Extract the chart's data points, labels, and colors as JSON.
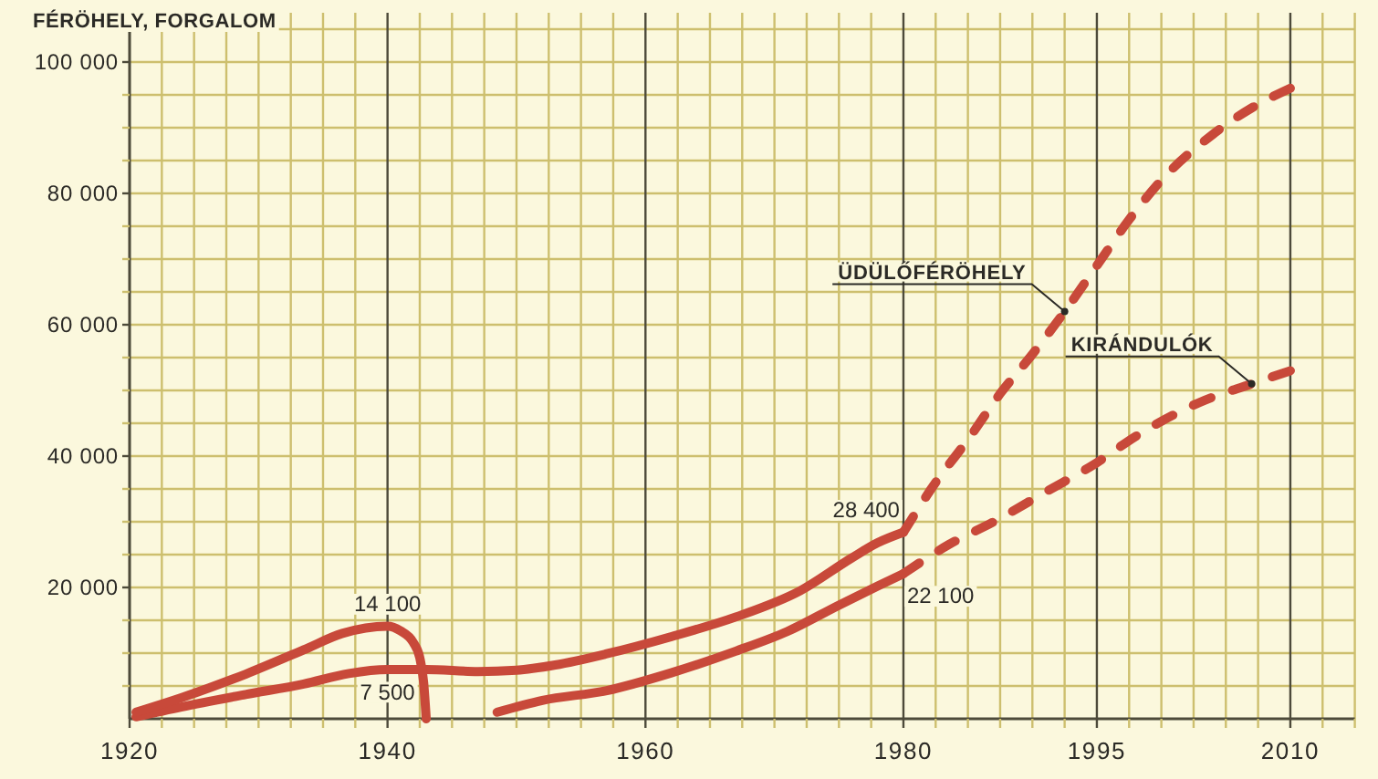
{
  "chart_data": {
    "type": "line",
    "ylabel": "FÉRÖHELY, FORGALOM",
    "xlim": [
      1920,
      2015
    ],
    "ylim": [
      0,
      107500
    ],
    "xticks": [
      1920,
      {
        "value": 1922.5,
        "label": null
      },
      {
        "value": 1925,
        "label": null
      },
      {
        "value": 1927.5,
        "label": null
      },
      {
        "value": 1930,
        "label": null
      },
      {
        "value": 1932.5,
        "label": null
      },
      {
        "value": 1935,
        "label": null
      },
      {
        "value": 1937.5,
        "label": null
      },
      1940,
      {
        "value": 1942.5,
        "label": null
      },
      {
        "value": 1945,
        "label": null
      },
      {
        "value": 1947.5,
        "label": null
      },
      {
        "value": 1950,
        "label": null
      },
      {
        "value": 1952.5,
        "label": null
      },
      {
        "value": 1955,
        "label": null
      },
      {
        "value": 1957.5,
        "label": null
      },
      1960,
      {
        "value": 1962.5,
        "label": null
      },
      {
        "value": 1965,
        "label": null
      },
      {
        "value": 1967.5,
        "label": null
      },
      {
        "value": 1970,
        "label": null
      },
      {
        "value": 1972.5,
        "label": null
      },
      {
        "value": 1975,
        "label": null
      },
      {
        "value": 1977.5,
        "label": null
      },
      1980,
      {
        "value": 1982.5,
        "label": null
      },
      {
        "value": 1985,
        "label": null
      },
      {
        "value": 1987.5,
        "label": null
      },
      {
        "value": 1990,
        "label": null
      },
      {
        "value": 1992.5,
        "label": null
      },
      1995,
      {
        "value": 1997.5,
        "label": null
      },
      {
        "value": 2000,
        "label": null
      },
      {
        "value": 2002.5,
        "label": null
      },
      {
        "value": 2005,
        "label": null
      },
      {
        "value": 2007.5,
        "label": null
      },
      2010,
      {
        "value": 2012.5,
        "label": null
      },
      {
        "value": 2015,
        "label": null
      }
    ],
    "yticks": [
      {
        "value": 5000,
        "label": null
      },
      {
        "value": 10000,
        "label": null
      },
      {
        "value": 15000,
        "label": null
      },
      {
        "value": 20000,
        "label": "20 000"
      },
      {
        "value": 25000,
        "label": null
      },
      {
        "value": 30000,
        "label": null
      },
      {
        "value": 35000,
        "label": null
      },
      {
        "value": 40000,
        "label": "40 000"
      },
      {
        "value": 45000,
        "label": null
      },
      {
        "value": 50000,
        "label": null
      },
      {
        "value": 55000,
        "label": null
      },
      {
        "value": 60000,
        "label": "60 000"
      },
      {
        "value": 65000,
        "label": null
      },
      {
        "value": 70000,
        "label": null
      },
      {
        "value": 75000,
        "label": null
      },
      {
        "value": 80000,
        "label": "80 000"
      },
      {
        "value": 85000,
        "label": null
      },
      {
        "value": 90000,
        "label": null
      },
      {
        "value": 95000,
        "label": null
      },
      {
        "value": 100000,
        "label": "100 000"
      },
      {
        "value": 105000,
        "label": null
      }
    ],
    "grid": true,
    "series": [
      {
        "color": "#c8493a",
        "line_style": "solid",
        "x": [
          1920.5,
          1924,
          1929,
          1933.5,
          1937,
          1940,
          1943,
          1947,
          1950,
          1953,
          1957,
          1962,
          1967,
          1972,
          1976,
          1978,
          1980
        ],
        "values": [
          300,
          1800,
          3700,
          5300,
          6900,
          7500,
          7500,
          7200,
          7400,
          8200,
          9900,
          12500,
          15500,
          19500,
          24500,
          26800,
          28400
        ],
        "value_labels": [
          null,
          null,
          null,
          null,
          null,
          "7 500",
          null,
          null,
          null,
          null,
          null,
          null,
          null,
          null,
          null,
          null,
          "28 400"
        ]
      },
      {
        "name": "ÜDÜLŐFÉRÖHELY",
        "color": "#c8493a",
        "line_style": "dashed",
        "x": [
          1980,
          1982.5,
          1985,
          1987.5,
          1990,
          1992.5,
          1995,
          1997.5,
          2000,
          2004,
          2007,
          2010
        ],
        "values": [
          28400,
          36000,
          42500,
          49500,
          55500,
          62000,
          69000,
          76000,
          82000,
          89000,
          93000,
          96000
        ]
      },
      {
        "color": "#c8493a",
        "line_style": "solid",
        "x": [
          1920.5,
          1924,
          1929,
          1933.5,
          1936.5,
          1940,
          1941,
          1942,
          1942.5,
          1942.8,
          1943,
          1946,
          1948.5,
          1952,
          1957,
          1962,
          1967,
          1971,
          1975,
          1978,
          1980
        ],
        "values": [
          1000,
          3200,
          6800,
          10500,
          13000,
          14100,
          13400,
          11600,
          9300,
          5500,
          0,
          null,
          1000,
          2800,
          4300,
          7000,
          10300,
          13300,
          17300,
          20200,
          22100
        ],
        "value_labels": [
          null,
          null,
          null,
          null,
          null,
          "14 100",
          null,
          null,
          null,
          null,
          null,
          null,
          null,
          null,
          null,
          null,
          null,
          null,
          null,
          null,
          "22 100"
        ]
      },
      {
        "name": "KIRÁNDULÓK",
        "color": "#c8493a",
        "line_style": "dashed",
        "x": [
          1980,
          1983.5,
          1987,
          1991,
          1995,
          1998,
          2000,
          2003,
          2007,
          2010
        ],
        "values": [
          22100,
          26500,
          30000,
          34500,
          39000,
          43000,
          45300,
          48200,
          51000,
          53000
        ]
      }
    ]
  }
}
